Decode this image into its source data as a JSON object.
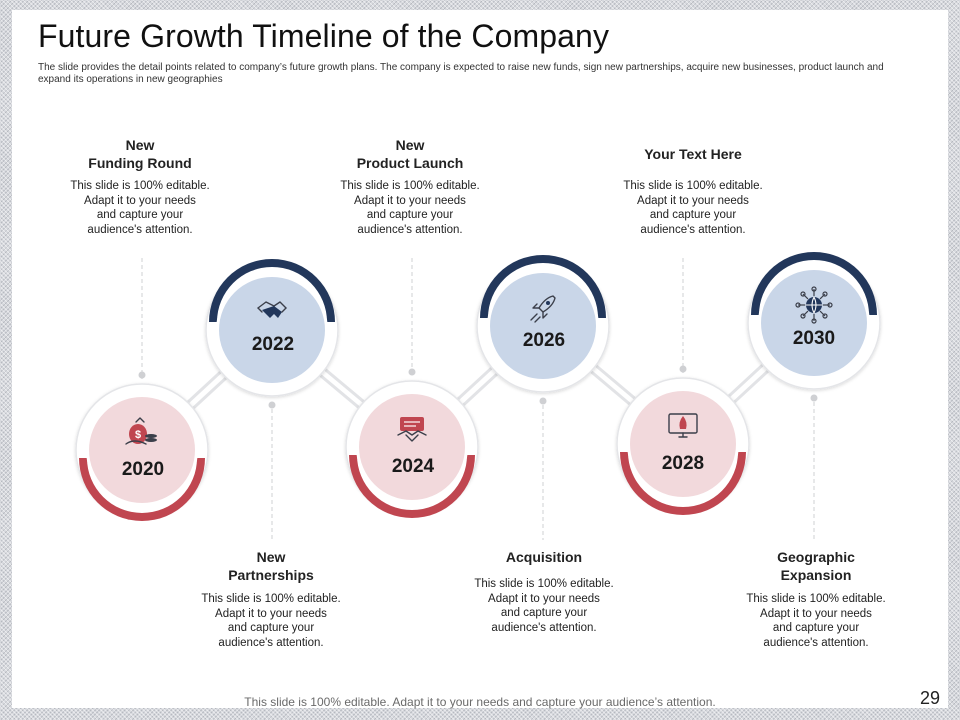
{
  "slide": {
    "title": "Future Growth Timeline of the Company",
    "subtitle": "The slide provides the detail points related to company’s future growth plans. The company is expected to raise new funds, sign new partnerships, acquire new businesses, product launch and expand its operations in new geographies",
    "footer": "This slide is 100% editable. Adapt it to your needs and capture your audience’s attention.",
    "page_number": "29"
  },
  "colors": {
    "navy": "#22375b",
    "red": "#c04650",
    "light_blue": "#c9d6e8",
    "light_pink": "#f2d9dc"
  },
  "milestones": [
    {
      "year": "2020",
      "title_lines": [
        "New",
        "Funding Round"
      ],
      "icon": "money-bag-icon",
      "lines": [
        "This slide is 100% editable.",
        "Adapt it to your needs",
        "and capture your",
        "audience's attention."
      ]
    },
    {
      "year": "2022",
      "title_lines": [
        "New",
        "Partnerships"
      ],
      "icon": "handshake-icon",
      "lines": [
        "This slide is 100% editable.",
        "Adapt it to your needs",
        "and capture your",
        "audience's attention."
      ]
    },
    {
      "year": "2024",
      "title_lines": [
        "New",
        "Product Launch"
      ],
      "icon": "deal-contract-icon",
      "lines": [
        "This slide is 100% editable.",
        "Adapt it to your needs",
        "and capture your",
        "audience's attention."
      ]
    },
    {
      "year": "2026",
      "title_lines": [
        "Acquisition"
      ],
      "icon": "rocket-icon",
      "lines": [
        "This slide is 100% editable.",
        "Adapt it to your needs",
        "and capture your",
        "audience's attention."
      ]
    },
    {
      "year": "2028",
      "title_lines": [
        "Your Text Here"
      ],
      "icon": "monitor-rocket-icon",
      "lines": [
        "This slide is 100% editable.",
        "Adapt it to your needs",
        "and capture your",
        "audience's attention."
      ]
    },
    {
      "year": "2030",
      "title_lines": [
        "Geographic",
        "Expansion"
      ],
      "icon": "globe-network-icon",
      "lines": [
        "This slide is 100% editable.",
        "Adapt it to your needs",
        "and capture your",
        "audience's attention."
      ]
    }
  ]
}
